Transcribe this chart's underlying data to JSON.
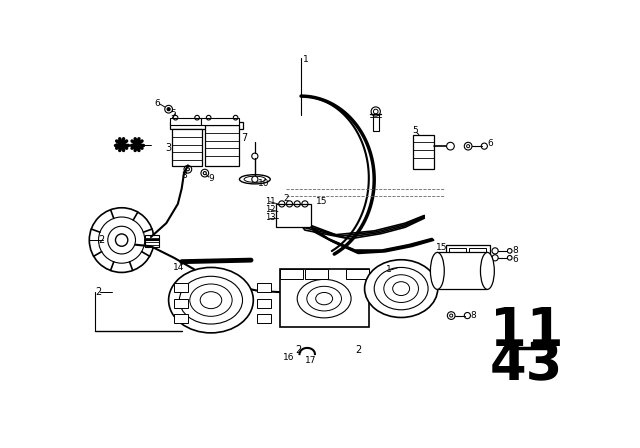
{
  "bg_color": "#ffffff",
  "line_color": "#000000",
  "fig_width": 6.4,
  "fig_height": 4.48,
  "dpi": 100,
  "page_number_top": "11",
  "page_number_bottom": "43",
  "page_num_fontsize": 38
}
